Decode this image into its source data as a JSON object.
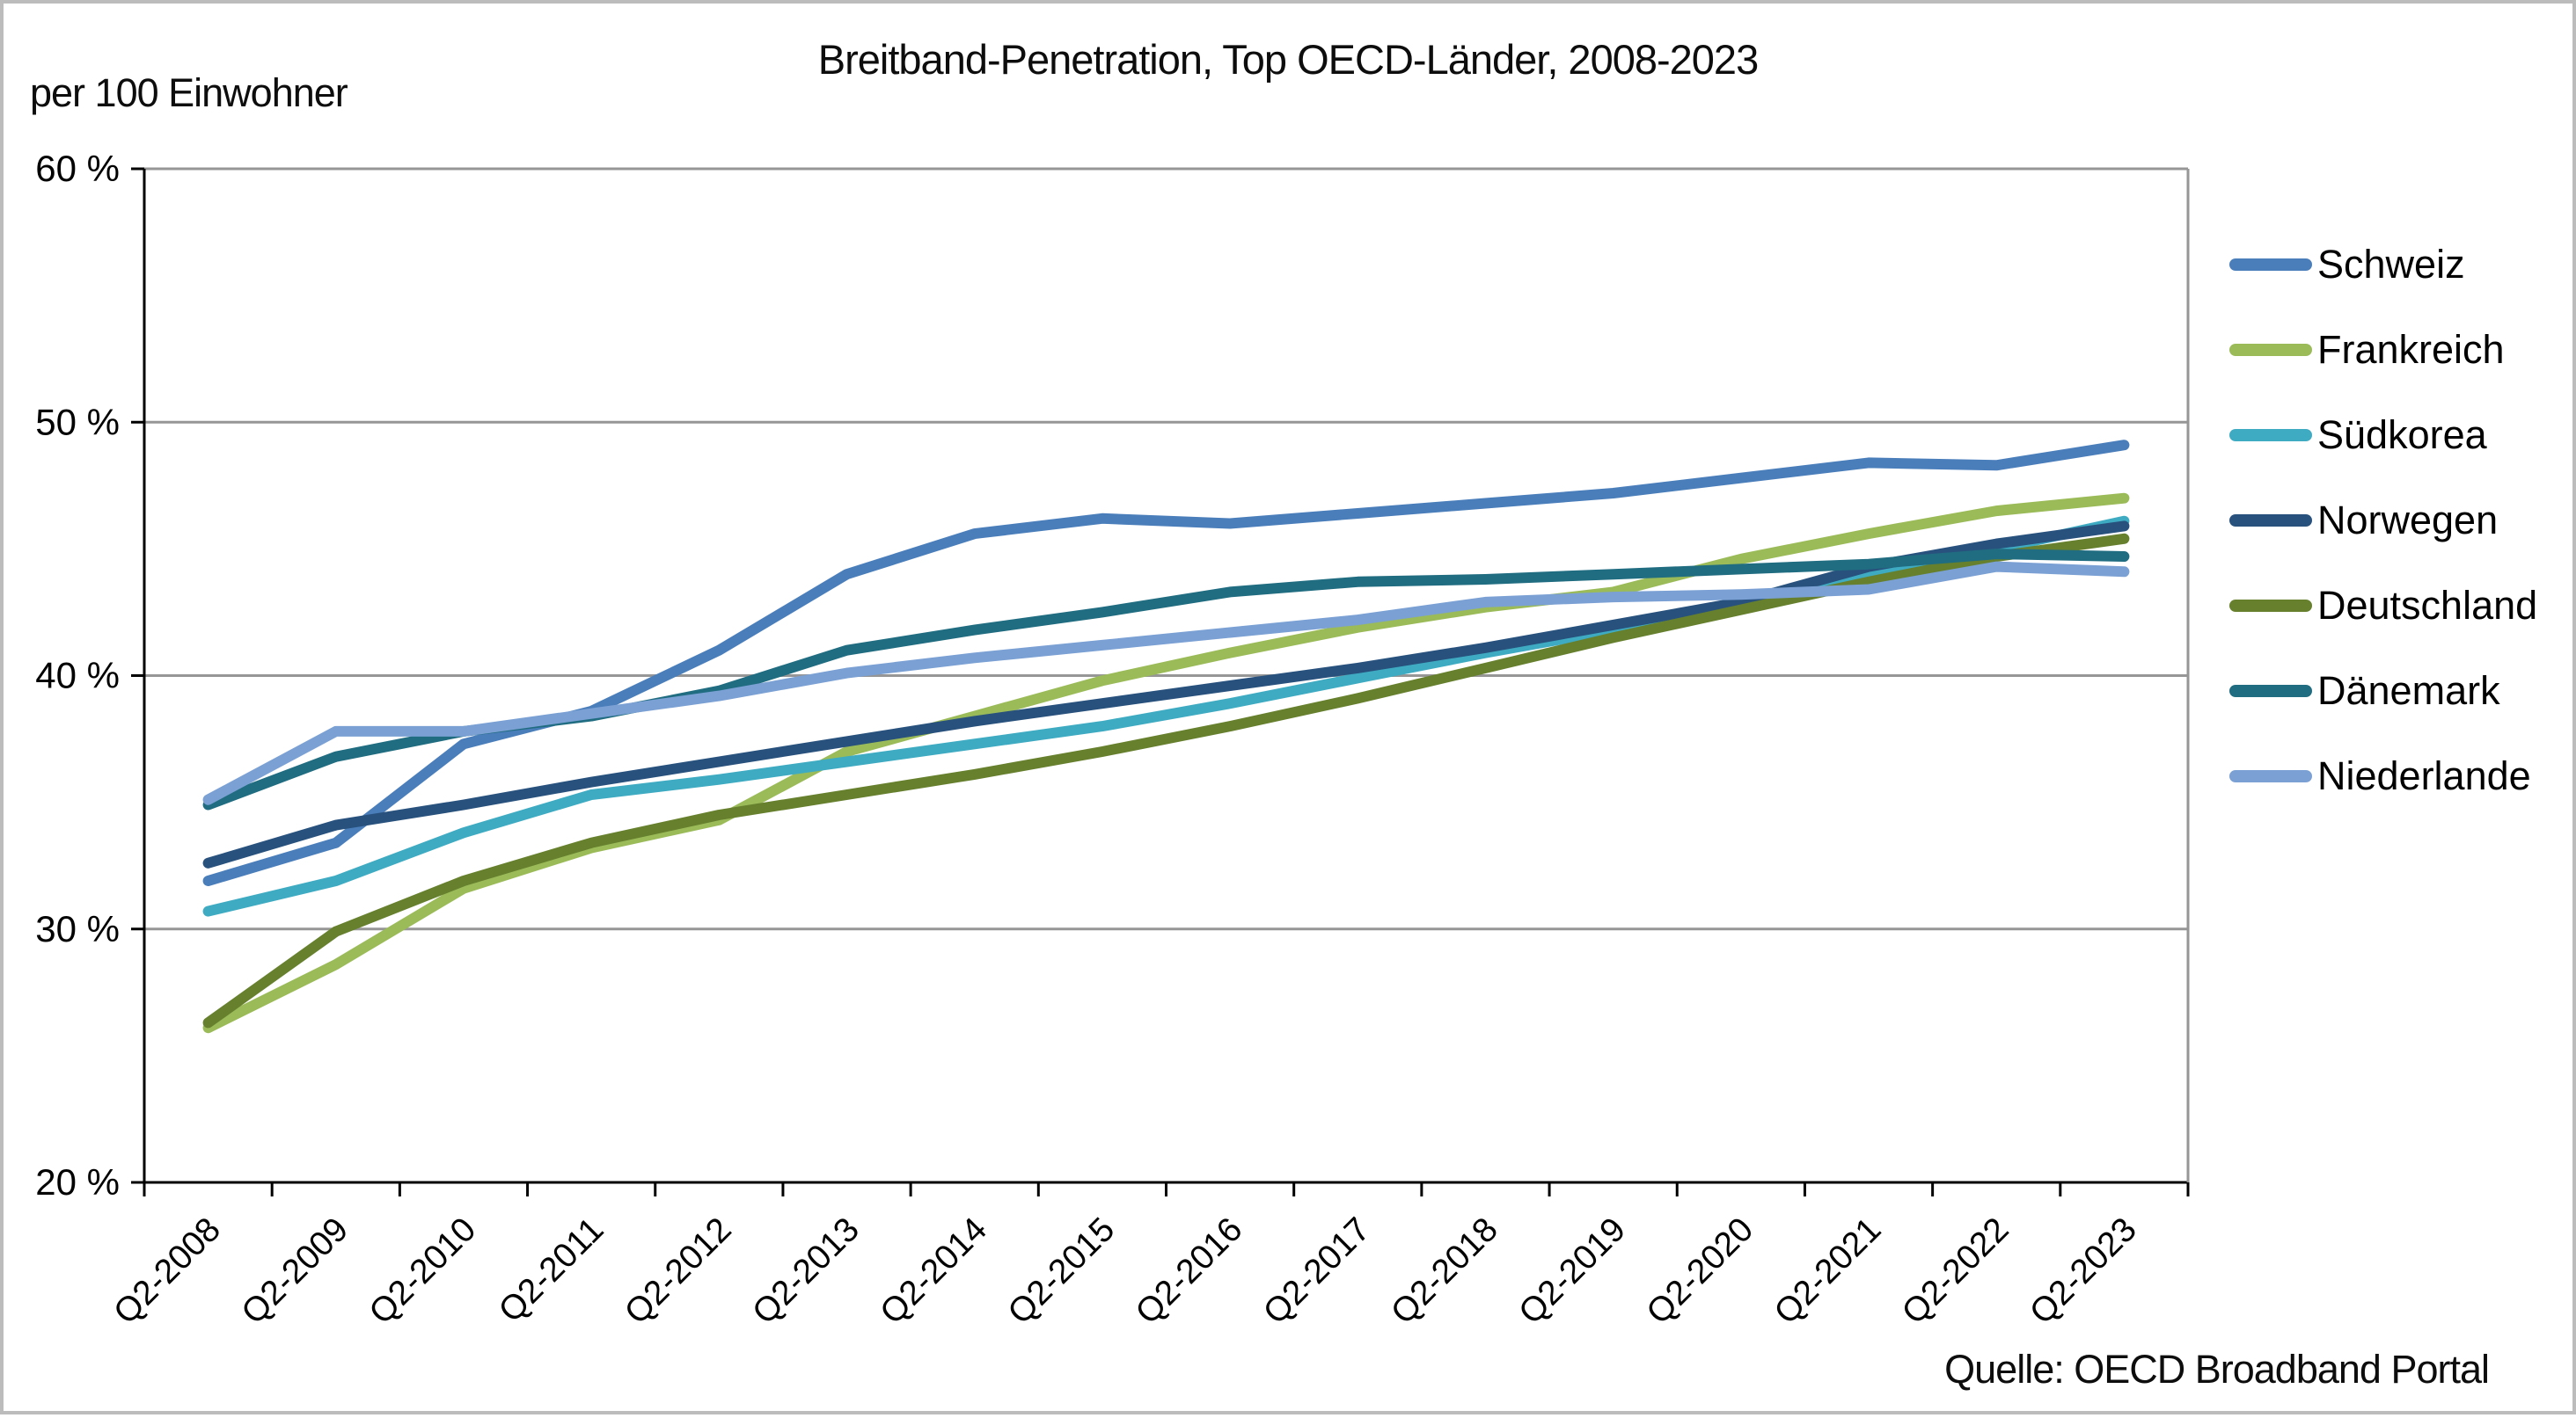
{
  "chart": {
    "title": "Breitband-Penetration, Top OECD-Länder, 2008-2023",
    "y_axis_unit": "per 100 Einwohner",
    "source": "Quelle: OECD Broadband Portal"
  },
  "chart_data": {
    "type": "line",
    "title": "Breitband-Penetration, Top OECD-Länder, 2008-2023",
    "ylabel": "per 100 Einwohner",
    "source": "Quelle: OECD Broadband Portal",
    "ylim": [
      20,
      60
    ],
    "y_ticks": [
      60,
      50,
      40,
      30,
      20
    ],
    "y_tick_suffix": " %",
    "grid": true,
    "legend_position": "right",
    "x_label_rotation": -45,
    "categories": [
      "Q2-2008",
      "Q2-2009",
      "Q2-2010",
      "Q2-2011",
      "Q2-2012",
      "Q2-2013",
      "Q2-2014",
      "Q2-2015",
      "Q2-2016",
      "Q2-2017",
      "Q2-2018",
      "Q2-2019",
      "Q2-2020",
      "Q2-2021",
      "Q2-2022",
      "Q2-2023"
    ],
    "series": [
      {
        "name": "Schweiz",
        "color": "#4A7EBB",
        "values": [
          31.9,
          33.4,
          37.3,
          38.6,
          41.0,
          44.0,
          45.6,
          46.2,
          46.0,
          46.4,
          46.8,
          47.2,
          47.8,
          48.4,
          48.3,
          49.1
        ]
      },
      {
        "name": "Frankreich",
        "color": "#9BBB59",
        "values": [
          26.1,
          28.6,
          31.6,
          33.2,
          34.3,
          37.0,
          38.4,
          39.8,
          40.9,
          41.9,
          42.7,
          43.3,
          44.6,
          45.6,
          46.5,
          47.0
        ]
      },
      {
        "name": "Südkorea",
        "color": "#3EABC2",
        "values": [
          30.7,
          31.9,
          33.8,
          35.3,
          35.9,
          36.6,
          37.3,
          38.0,
          38.9,
          39.9,
          40.9,
          41.8,
          42.7,
          43.9,
          45.0,
          46.1
        ]
      },
      {
        "name": "Norwegen",
        "color": "#28517D",
        "values": [
          32.6,
          34.1,
          34.9,
          35.8,
          36.6,
          37.4,
          38.2,
          38.9,
          39.6,
          40.3,
          41.1,
          42.0,
          42.9,
          44.3,
          45.2,
          45.9
        ]
      },
      {
        "name": "Deutschland",
        "color": "#66802E",
        "values": [
          26.3,
          29.9,
          31.9,
          33.4,
          34.5,
          35.3,
          36.1,
          37.0,
          38.0,
          39.1,
          40.3,
          41.5,
          42.6,
          43.7,
          44.7,
          45.4
        ]
      },
      {
        "name": "Dänemark",
        "color": "#206C80",
        "values": [
          34.9,
          36.8,
          37.8,
          38.4,
          39.4,
          41.0,
          41.8,
          42.5,
          43.3,
          43.7,
          43.8,
          44.0,
          44.2,
          44.4,
          44.8,
          44.7
        ]
      },
      {
        "name": "Niederlande",
        "color": "#7AA0D4",
        "values": [
          35.1,
          37.8,
          37.8,
          38.5,
          39.2,
          40.1,
          40.7,
          41.2,
          41.7,
          42.2,
          42.9,
          43.1,
          43.2,
          43.4,
          44.3,
          44.1
        ]
      }
    ]
  }
}
